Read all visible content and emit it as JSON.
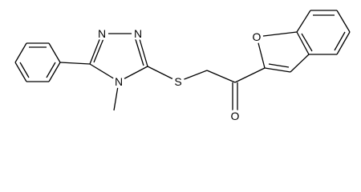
{
  "labels": [
    "N",
    "N",
    "N",
    "S",
    "O",
    "O"
  ]
}
